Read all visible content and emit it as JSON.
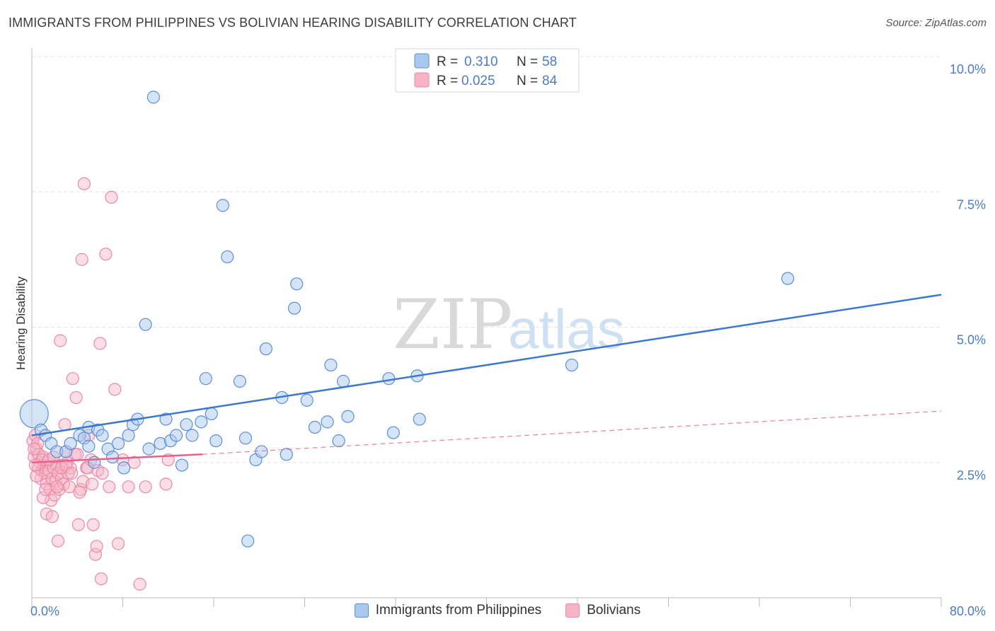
{
  "title": "IMMIGRANTS FROM PHILIPPINES VS BOLIVIAN HEARING DISABILITY CORRELATION CHART",
  "source": "Source: ZipAtlas.com",
  "watermark": {
    "zip": "ZIP",
    "atlas": "atlas"
  },
  "colors": {
    "blue_fill": "#a9c8ee",
    "blue_stroke": "#5b8fd6",
    "blue_line": "#3c78d0",
    "pink_fill": "#f6b3c8",
    "pink_stroke": "#e98aa8",
    "pink_line": "#e5608b",
    "axis_text": "#4a7cc9",
    "grid": "#e3e3e3"
  },
  "legend": {
    "rows": [
      {
        "r_label": "R =",
        "r_value": "0.310",
        "n_label": "N =",
        "n_value": "58"
      },
      {
        "r_label": "R =",
        "r_value": "0.025",
        "n_label": "N =",
        "n_value": "84"
      }
    ]
  },
  "chart_data": {
    "type": "scatter",
    "title": "IMMIGRANTS FROM PHILIPPINES VS BOLIVIAN HEARING DISABILITY CORRELATION CHART",
    "xlabel": "",
    "ylabel": "Hearing Disability",
    "xlim": [
      0,
      80
    ],
    "ylim": [
      0,
      10
    ],
    "x_tick_labels": [
      "0.0%",
      "80.0%"
    ],
    "y_ticks": [
      2.5,
      5.0,
      7.5,
      10.0
    ],
    "y_tick_labels": [
      "2.5%",
      "5.0%",
      "7.5%",
      "10.0%"
    ],
    "grid": "horizontal dashed",
    "legend_position": "top-center",
    "series": [
      {
        "name": "Immigrants from Philippines",
        "color": "#a9c8ee",
        "trend": {
          "x": [
            0,
            80
          ],
          "y": [
            3.0,
            5.6
          ],
          "style": "solid"
        },
        "points": [
          [
            0.2,
            3.4
          ],
          [
            0.8,
            3.1
          ],
          [
            1.2,
            3.0
          ],
          [
            1.7,
            2.85
          ],
          [
            2.2,
            2.7
          ],
          [
            3.0,
            2.7
          ],
          [
            3.4,
            2.85
          ],
          [
            4.2,
            3.0
          ],
          [
            4.6,
            2.95
          ],
          [
            5.0,
            2.8
          ],
          [
            5.0,
            3.15
          ],
          [
            5.5,
            2.5
          ],
          [
            5.8,
            3.1
          ],
          [
            6.2,
            3.0
          ],
          [
            6.7,
            2.75
          ],
          [
            7.1,
            2.6
          ],
          [
            7.6,
            2.85
          ],
          [
            8.1,
            2.4
          ],
          [
            8.5,
            3.0
          ],
          [
            8.9,
            3.2
          ],
          [
            9.3,
            3.3
          ],
          [
            10.0,
            5.05
          ],
          [
            10.3,
            2.75
          ],
          [
            10.7,
            9.25
          ],
          [
            11.3,
            2.85
          ],
          [
            11.8,
            3.3
          ],
          [
            12.2,
            2.9
          ],
          [
            12.7,
            3.0
          ],
          [
            13.2,
            2.45
          ],
          [
            13.6,
            3.2
          ],
          [
            14.1,
            3.0
          ],
          [
            14.9,
            3.25
          ],
          [
            15.3,
            4.05
          ],
          [
            15.8,
            3.4
          ],
          [
            16.2,
            2.9
          ],
          [
            16.8,
            7.25
          ],
          [
            17.2,
            6.3
          ],
          [
            18.3,
            4.0
          ],
          [
            18.8,
            2.95
          ],
          [
            19.7,
            2.55
          ],
          [
            20.2,
            2.7
          ],
          [
            20.6,
            4.6
          ],
          [
            22.0,
            3.7
          ],
          [
            22.4,
            2.65
          ],
          [
            23.1,
            5.35
          ],
          [
            23.3,
            5.8
          ],
          [
            24.2,
            3.65
          ],
          [
            24.9,
            3.15
          ],
          [
            26.0,
            3.25
          ],
          [
            26.3,
            4.3
          ],
          [
            27.0,
            2.9
          ],
          [
            27.4,
            4.0
          ],
          [
            27.8,
            3.35
          ],
          [
            31.4,
            4.05
          ],
          [
            31.8,
            3.05
          ],
          [
            33.9,
            4.1
          ],
          [
            34.1,
            3.3
          ],
          [
            47.5,
            4.3
          ],
          [
            66.5,
            5.9
          ],
          [
            19.0,
            1.05
          ]
        ]
      },
      {
        "name": "Bolivians",
        "color": "#f6b3c8",
        "trend_solid": {
          "x": [
            0,
            15
          ],
          "y": [
            2.5,
            2.65
          ]
        },
        "trend_dashed": {
          "x": [
            15,
            80
          ],
          "y": [
            2.65,
            3.45
          ]
        },
        "points": [
          [
            0.1,
            2.9
          ],
          [
            0.2,
            2.6
          ],
          [
            0.3,
            3.0
          ],
          [
            0.4,
            2.75
          ],
          [
            0.5,
            2.85
          ],
          [
            0.6,
            2.4
          ],
          [
            0.7,
            2.5
          ],
          [
            0.8,
            2.2
          ],
          [
            0.9,
            2.35
          ],
          [
            1.0,
            2.6
          ],
          [
            1.1,
            2.45
          ],
          [
            1.2,
            2.3
          ],
          [
            1.3,
            2.1
          ],
          [
            1.4,
            2.5
          ],
          [
            1.5,
            2.35
          ],
          [
            1.6,
            2.0
          ],
          [
            1.7,
            1.8
          ],
          [
            1.8,
            2.2
          ],
          [
            1.9,
            2.4
          ],
          [
            2.0,
            1.9
          ],
          [
            2.1,
            2.15
          ],
          [
            2.2,
            2.45
          ],
          [
            2.3,
            2.3
          ],
          [
            2.4,
            2.0
          ],
          [
            2.5,
            4.75
          ],
          [
            2.6,
            2.2
          ],
          [
            2.7,
            2.45
          ],
          [
            2.8,
            2.1
          ],
          [
            2.9,
            3.2
          ],
          [
            3.0,
            2.7
          ],
          [
            3.1,
            2.5
          ],
          [
            3.2,
            2.3
          ],
          [
            3.3,
            2.05
          ],
          [
            3.4,
            2.4
          ],
          [
            3.6,
            4.05
          ],
          [
            3.8,
            2.65
          ],
          [
            3.9,
            3.7
          ],
          [
            4.1,
            1.35
          ],
          [
            4.3,
            2.0
          ],
          [
            4.5,
            2.15
          ],
          [
            4.4,
            6.25
          ],
          [
            4.6,
            7.65
          ],
          [
            4.8,
            2.4
          ],
          [
            5.0,
            3.0
          ],
          [
            5.2,
            2.55
          ],
          [
            5.4,
            1.35
          ],
          [
            5.6,
            0.8
          ],
          [
            5.8,
            2.35
          ],
          [
            5.7,
            0.95
          ],
          [
            6.0,
            4.7
          ],
          [
            6.1,
            0.35
          ],
          [
            6.2,
            2.3
          ],
          [
            6.5,
            6.35
          ],
          [
            6.8,
            2.05
          ],
          [
            7.0,
            7.4
          ],
          [
            7.3,
            3.85
          ],
          [
            7.6,
            1.0
          ],
          [
            8.0,
            2.55
          ],
          [
            8.5,
            2.05
          ],
          [
            9.0,
            2.5
          ],
          [
            9.5,
            0.25
          ],
          [
            10.0,
            2.05
          ],
          [
            11.8,
            2.1
          ],
          [
            12.0,
            2.55
          ],
          [
            1.0,
            1.85
          ],
          [
            1.3,
            1.55
          ],
          [
            1.8,
            1.5
          ],
          [
            2.3,
            1.05
          ],
          [
            0.4,
            2.25
          ],
          [
            0.6,
            2.65
          ],
          [
            0.9,
            2.55
          ],
          [
            1.2,
            2.0
          ],
          [
            1.5,
            2.55
          ],
          [
            1.9,
            2.6
          ],
          [
            2.2,
            2.05
          ],
          [
            2.6,
            2.4
          ],
          [
            3.0,
            2.45
          ],
          [
            3.5,
            2.3
          ],
          [
            4.0,
            2.65
          ],
          [
            4.2,
            1.95
          ],
          [
            4.9,
            2.4
          ],
          [
            5.3,
            2.1
          ],
          [
            0.2,
            2.75
          ],
          [
            0.3,
            2.45
          ]
        ]
      }
    ]
  }
}
